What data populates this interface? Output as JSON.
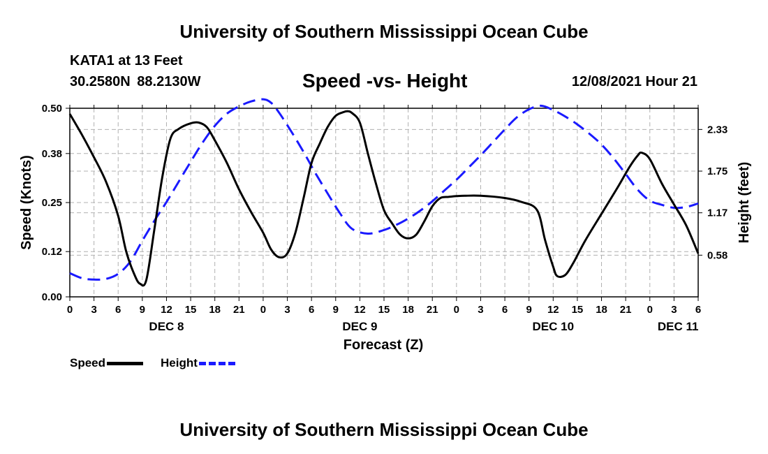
{
  "header": {
    "title": "University of Southern Mississippi Ocean Cube",
    "station": "KATA1 at 13 Feet",
    "coordinates": "30.2580N  88.2130W",
    "chart_title": "Speed -vs- Height",
    "datetime": "12/08/2021 Hour 21"
  },
  "footer": {
    "title": "University of Southern Mississippi Ocean Cube"
  },
  "legend": {
    "speed_label": "Speed",
    "height_label": "Height"
  },
  "colors": {
    "speed": "#000000",
    "height": "#1a1aff",
    "grid": "#b0b0b0"
  },
  "chart_data": {
    "type": "line",
    "title": "Speed -vs- Height",
    "xlabel": "Forecast (Z)",
    "ylabel": "Speed (Knots)",
    "y2label": "Height (feet)",
    "x_range_hours": [
      0,
      78
    ],
    "ylim": [
      0,
      0.5
    ],
    "y2lim": [
      0.0,
      2.625
    ],
    "yticks": [
      "0.00",
      "0.12",
      "0.25",
      "0.38",
      "0.50"
    ],
    "y2ticks": [
      {
        "value": 0.58,
        "label": "0.58"
      },
      {
        "value": 1.17,
        "label": "1.17"
      },
      {
        "value": 1.75,
        "label": "1.75"
      },
      {
        "value": 2.33,
        "label": "2.33"
      }
    ],
    "xtick_labels": [
      "0",
      "3",
      "6",
      "9",
      "12",
      "15",
      "18",
      "21",
      "0",
      "3",
      "6",
      "9",
      "12",
      "15",
      "18",
      "21",
      "0",
      "3",
      "6",
      "9",
      "12",
      "15",
      "18",
      "21",
      "0",
      "3",
      "6"
    ],
    "day_labels": [
      {
        "label": "DEC 8",
        "hour": 12
      },
      {
        "label": "DEC 9",
        "hour": 36
      },
      {
        "label": "DEC 10",
        "hour": 60
      },
      {
        "label": "DEC 11",
        "hour": 75.5
      }
    ],
    "series": [
      {
        "name": "Speed",
        "axis": "left",
        "x": [
          0,
          1.5,
          3,
          4.5,
          6,
          7,
          8,
          8.7,
          9.5,
          10.5,
          11.5,
          12.5,
          13.5,
          15,
          16,
          17,
          18,
          19.5,
          21,
          22.5,
          24,
          25,
          26,
          27,
          28,
          29,
          30,
          31,
          32,
          33,
          34,
          34.5,
          35,
          36,
          37,
          38,
          39,
          40,
          41,
          42,
          43,
          44,
          45,
          46,
          47,
          48,
          49,
          51,
          54,
          56,
          58,
          59,
          60,
          60.5,
          61.5,
          62.5,
          64,
          66,
          68,
          69.5,
          70.5,
          71,
          72,
          73.5,
          75,
          76.5,
          78
        ],
        "values": [
          0.485,
          0.43,
          0.37,
          0.305,
          0.215,
          0.12,
          0.06,
          0.035,
          0.045,
          0.18,
          0.32,
          0.42,
          0.445,
          0.46,
          0.462,
          0.45,
          0.415,
          0.355,
          0.285,
          0.225,
          0.17,
          0.125,
          0.105,
          0.115,
          0.17,
          0.26,
          0.355,
          0.405,
          0.45,
          0.48,
          0.49,
          0.492,
          0.488,
          0.462,
          0.38,
          0.3,
          0.23,
          0.195,
          0.165,
          0.155,
          0.165,
          0.2,
          0.24,
          0.262,
          0.265,
          0.267,
          0.268,
          0.268,
          0.262,
          0.252,
          0.23,
          0.15,
          0.08,
          0.055,
          0.058,
          0.09,
          0.15,
          0.22,
          0.29,
          0.345,
          0.375,
          0.382,
          0.365,
          0.3,
          0.245,
          0.19,
          0.115
        ]
      },
      {
        "name": "Height",
        "axis": "right",
        "x": [
          0,
          1.5,
          3,
          4.5,
          6,
          7.5,
          9,
          10.5,
          12,
          13.5,
          15,
          16.5,
          18,
          19.5,
          21,
          22.5,
          24,
          25,
          26,
          27.5,
          29,
          30.5,
          32,
          33.5,
          35,
          37,
          39,
          40.5,
          42,
          43.5,
          45,
          46.5,
          48,
          49.5,
          51,
          52.5,
          54,
          55.5,
          57,
          58.5,
          60,
          61.5,
          63,
          64.5,
          66,
          67.5,
          69,
          70.5,
          72,
          73.5,
          75,
          76.5,
          78
        ],
        "values": [
          0.33,
          0.26,
          0.24,
          0.25,
          0.32,
          0.49,
          0.78,
          1.06,
          1.32,
          1.6,
          1.88,
          2.15,
          2.38,
          2.55,
          2.65,
          2.72,
          2.75,
          2.7,
          2.56,
          2.3,
          2.02,
          1.72,
          1.44,
          1.17,
          0.95,
          0.88,
          0.93,
          1.0,
          1.09,
          1.2,
          1.33,
          1.48,
          1.63,
          1.8,
          1.97,
          2.15,
          2.33,
          2.5,
          2.61,
          2.66,
          2.6,
          2.51,
          2.4,
          2.27,
          2.12,
          1.93,
          1.71,
          1.49,
          1.34,
          1.28,
          1.24,
          1.25,
          1.3
        ]
      }
    ]
  }
}
